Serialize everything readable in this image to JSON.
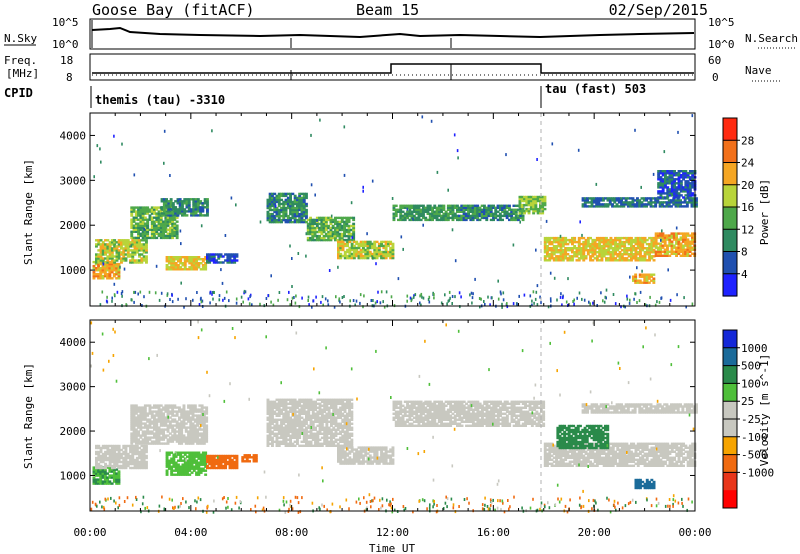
{
  "header": {
    "station": "Goose Bay (fitACF)",
    "beam": "Beam 15",
    "date": "02/Sep/2015"
  },
  "nsky_panel": {
    "left_label": "N.Sky",
    "right_label": "N.Search",
    "left_ticks": [
      "10^5",
      "10^0"
    ],
    "right_ticks": [
      "10^5",
      "10^0"
    ]
  },
  "freq_panel": {
    "left_label_line1": "Freq.",
    "left_label_line2": "[MHz]",
    "right_label": "Nave",
    "left_ticks": [
      "18",
      "8"
    ],
    "right_ticks": [
      "60",
      "0"
    ]
  },
  "cpid": {
    "label": "CPID",
    "segment1": "themis (tau) -3310",
    "segment2": "tau (fast) 503"
  },
  "colors": {
    "power_scale": [
      "#1f22ff",
      "#2050b0",
      "#2f8a60",
      "#4ea84a",
      "#b8d43a",
      "#f5a623",
      "#f2701a",
      "#ff2a10"
    ],
    "velocity_scale": [
      "#1428d8",
      "#1b6b9a",
      "#2a8a4a",
      "#4fbf3a",
      "#c8c8c0",
      "#c8c8c0",
      "#f6a400",
      "#f06a10",
      "#e8361a",
      "#ff0000"
    ]
  },
  "chart_data": [
    {
      "type": "heatmap",
      "name": "power",
      "ylabel": "Slant Range [km]",
      "yticks": [
        "1000",
        "2000",
        "3000",
        "4000"
      ],
      "ylim": [
        200,
        4500
      ],
      "colorbar_label": "Power [dB]",
      "colorbar_ticks": [
        "4",
        "8",
        "12",
        "16",
        "20",
        "24",
        "28"
      ],
      "regions": [
        {
          "t0": 0.1,
          "t1": 1.1,
          "r0": 800,
          "r1": 1200,
          "v": 24
        },
        {
          "t0": 0.2,
          "t1": 2.2,
          "r0": 1150,
          "r1": 1650,
          "v": 20
        },
        {
          "t0": 1.6,
          "t1": 3.4,
          "r0": 1700,
          "r1": 2400,
          "v": 16
        },
        {
          "t0": 2.8,
          "t1": 4.6,
          "r0": 2200,
          "r1": 2600,
          "v": 12
        },
        {
          "t0": 3.0,
          "t1": 4.6,
          "r0": 1000,
          "r1": 1300,
          "v": 22
        },
        {
          "t0": 4.6,
          "t1": 5.8,
          "r0": 1150,
          "r1": 1350,
          "v": 8
        },
        {
          "t0": 7.0,
          "t1": 8.6,
          "r0": 2050,
          "r1": 2700,
          "v": 12
        },
        {
          "t0": 8.6,
          "t1": 10.4,
          "r0": 1650,
          "r1": 2150,
          "v": 16
        },
        {
          "t0": 9.8,
          "t1": 12.0,
          "r0": 1250,
          "r1": 1650,
          "v": 20
        },
        {
          "t0": 12.0,
          "t1": 14.6,
          "r0": 2100,
          "r1": 2450,
          "v": 14
        },
        {
          "t0": 14.6,
          "t1": 17.2,
          "r0": 2100,
          "r1": 2450,
          "v": 12
        },
        {
          "t0": 17.0,
          "t1": 18.0,
          "r0": 2250,
          "r1": 2650,
          "v": 18
        },
        {
          "t0": 18.0,
          "t1": 22.4,
          "r0": 1200,
          "r1": 1700,
          "v": 22
        },
        {
          "t0": 22.4,
          "t1": 24.0,
          "r0": 1300,
          "r1": 1800,
          "v": 24
        },
        {
          "t0": 21.5,
          "t1": 22.4,
          "r0": 700,
          "r1": 900,
          "v": 24
        },
        {
          "t0": 19.5,
          "t1": 24.0,
          "r0": 2400,
          "r1": 2600,
          "v": 10
        },
        {
          "t0": 22.5,
          "t1": 24.0,
          "r0": 2600,
          "r1": 3200,
          "v": 8
        }
      ]
    },
    {
      "type": "heatmap",
      "name": "velocity",
      "ylabel": "Slant Range [km]",
      "yticks": [
        "1000",
        "2000",
        "3000",
        "4000"
      ],
      "ylim": [
        200,
        4500
      ],
      "xlabel": "Time UT",
      "xticks": [
        "00:00",
        "04:00",
        "08:00",
        "12:00",
        "16:00",
        "20:00",
        "00:00"
      ],
      "xlim": [
        0,
        24
      ],
      "colorbar_label": "Velocity [m s^-1]",
      "colorbar_ticks": [
        "1000",
        "500",
        "100",
        "25",
        "-25",
        "-100",
        "-500",
        "-1000"
      ],
      "regions": [
        {
          "t0": 0.1,
          "t1": 1.1,
          "r0": 800,
          "r1": 1200,
          "v": 100
        },
        {
          "t0": 0.2,
          "t1": 2.2,
          "r0": 1150,
          "r1": 1650,
          "v": 0
        },
        {
          "t0": 1.6,
          "t1": 4.6,
          "r0": 1700,
          "r1": 2600,
          "v": 0
        },
        {
          "t0": 3.0,
          "t1": 4.6,
          "r0": 1000,
          "r1": 1500,
          "v": 60
        },
        {
          "t0": 4.6,
          "t1": 5.8,
          "r0": 1150,
          "r1": 1450,
          "v": -150
        },
        {
          "t0": 6.0,
          "t1": 6.6,
          "r0": 1300,
          "r1": 1450,
          "v": -120
        },
        {
          "t0": 7.0,
          "t1": 10.4,
          "r0": 1650,
          "r1": 2700,
          "v": 0
        },
        {
          "t0": 9.8,
          "t1": 12.0,
          "r0": 1250,
          "r1": 1650,
          "v": 0
        },
        {
          "t0": 12.0,
          "t1": 18.0,
          "r0": 2100,
          "r1": 2650,
          "v": 0
        },
        {
          "t0": 18.0,
          "t1": 24.0,
          "r0": 1200,
          "r1": 1700,
          "v": 0
        },
        {
          "t0": 19.5,
          "t1": 24.0,
          "r0": 2400,
          "r1": 2600,
          "v": 0
        },
        {
          "t0": 18.5,
          "t1": 20.5,
          "r0": 1600,
          "r1": 2100,
          "v": 200
        },
        {
          "t0": 21.6,
          "t1": 22.4,
          "r0": 700,
          "r1": 900,
          "v": 600
        }
      ]
    }
  ]
}
